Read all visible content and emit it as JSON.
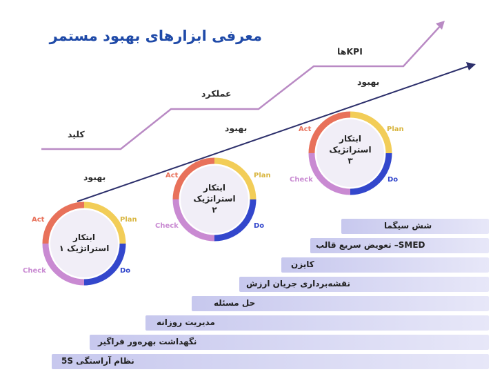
{
  "title": "معرفی ابزارهای بهبود مستمر",
  "path_labels": {
    "key": "کلید",
    "performance": "عملکرد",
    "kpis": "KPIها",
    "improvement_1": "بهبود",
    "improvement_2": "بهبود",
    "improvement_3": "بهبود"
  },
  "cycles": [
    {
      "line1": "ابتکار",
      "line2": "استراتژیک ۱",
      "act": "Act",
      "plan": "Plan",
      "do": "Do",
      "check": "Check"
    },
    {
      "line1": "ابتکار",
      "line2": "استراتژیک",
      "line3": "۲",
      "act": "Act",
      "plan": "Plan",
      "do": "Do",
      "check": "Check"
    },
    {
      "line1": "ابتکار",
      "line2": "استراتژیک",
      "line3": "۳",
      "act": "Act",
      "plan": "Plan",
      "do": "Do",
      "check": "Check"
    }
  ],
  "tools": [
    "شش سیگما",
    "SMED– تعویض سریع قالب",
    "کایزن",
    "نقشه‌برداری جریان ارزش",
    "حل مسئله",
    "مدیریت روزانه",
    "نگهداشت بهره‌ور فراگیر",
    "نظام آراستگی 5S"
  ],
  "colors": {
    "title": "#1f4aa8",
    "path_line": "#b98ac4",
    "arrow_line": "#2c2f6b",
    "act": "#e8715a",
    "plan": "#f2cd58",
    "do": "#3347cc",
    "check": "#c98ad2",
    "bar_start": "#c7c8ee",
    "bar_end": "#e7e7f8"
  }
}
